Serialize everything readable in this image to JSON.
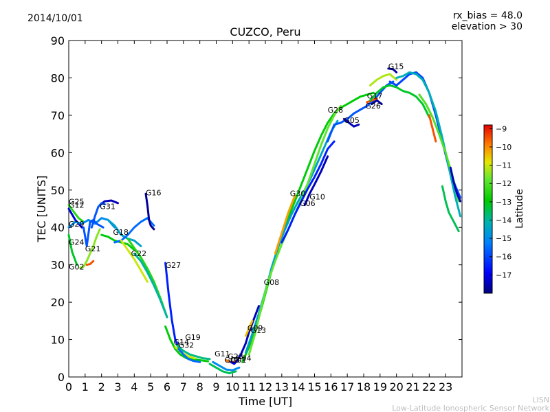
{
  "header": {
    "date": "2014/10/01",
    "rx_bias": "rx_bias = 48.0",
    "elevation": "elevation > 30"
  },
  "watermark": {
    "line1": "LISN",
    "line2": "Low-Latitude Ionospheric Sensor Network"
  },
  "chart_data": {
    "type": "scatter",
    "title": "CUZCO, Peru",
    "xlabel": "Time [UT]",
    "ylabel": "TEC [UNITS]",
    "xlim": [
      0,
      24
    ],
    "ylim": [
      0,
      90
    ],
    "xticks": [
      "0",
      "1",
      "2",
      "3",
      "4",
      "5",
      "6",
      "7",
      "8",
      "9",
      "10",
      "11",
      "12",
      "13",
      "14",
      "15",
      "16",
      "17",
      "18",
      "19",
      "20",
      "21",
      "22",
      "23"
    ],
    "yticks": [
      "0",
      "10",
      "20",
      "30",
      "40",
      "50",
      "60",
      "70",
      "80",
      "90"
    ],
    "colorbar": {
      "label": "Latitude",
      "range": [
        -18,
        -8.8
      ],
      "ticks": [
        "-9",
        "-10",
        "-11",
        "-12",
        "-13",
        "-14",
        "-15",
        "-16",
        "-17"
      ]
    },
    "satellite_labels": [
      {
        "name": "G25",
        "x": 0.0,
        "y": 46.2
      },
      {
        "name": "G12",
        "x": 0.0,
        "y": 45.3
      },
      {
        "name": "G29",
        "x": 0.0,
        "y": 40.2
      },
      {
        "name": "G24",
        "x": 0.0,
        "y": 35.4
      },
      {
        "name": "G21",
        "x": 1.0,
        "y": 33.6
      },
      {
        "name": "G02",
        "x": 0.0,
        "y": 28.7
      },
      {
        "name": "G31",
        "x": 1.9,
        "y": 44.9
      },
      {
        "name": "G18",
        "x": 2.7,
        "y": 38.0
      },
      {
        "name": "G22",
        "x": 3.8,
        "y": 32.3
      },
      {
        "name": "G16",
        "x": 4.7,
        "y": 48.6
      },
      {
        "name": "G27",
        "x": 5.9,
        "y": 29.2
      },
      {
        "name": "G14",
        "x": 6.4,
        "y": 8.6
      },
      {
        "name": "G32",
        "x": 6.7,
        "y": 7.8
      },
      {
        "name": "G19",
        "x": 7.1,
        "y": 9.9
      },
      {
        "name": "G11",
        "x": 8.9,
        "y": 5.5
      },
      {
        "name": "G23",
        "x": 9.7,
        "y": 4.8
      },
      {
        "name": "G03",
        "x": 9.5,
        "y": 3.9
      },
      {
        "name": "G01",
        "x": 9.9,
        "y": 3.9
      },
      {
        "name": "G04",
        "x": 10.2,
        "y": 4.3
      },
      {
        "name": "G09",
        "x": 10.9,
        "y": 12.4
      },
      {
        "name": "G13",
        "x": 11.1,
        "y": 11.8
      },
      {
        "name": "G08",
        "x": 11.9,
        "y": 24.6
      },
      {
        "name": "G30",
        "x": 13.5,
        "y": 48.4
      },
      {
        "name": "G06",
        "x": 14.1,
        "y": 45.7
      },
      {
        "name": "G10",
        "x": 14.7,
        "y": 47.5
      },
      {
        "name": "G28",
        "x": 15.8,
        "y": 70.7
      },
      {
        "name": "G05",
        "x": 16.8,
        "y": 68.0
      },
      {
        "name": "G17",
        "x": 18.2,
        "y": 74.5
      },
      {
        "name": "G26",
        "x": 18.1,
        "y": 71.8
      },
      {
        "name": "G15",
        "x": 19.5,
        "y": 82.4
      }
    ],
    "series": [
      {
        "name": "G25",
        "lat": -12.5,
        "x": [
          0.0,
          0.3,
          0.6,
          0.9
        ],
        "y": [
          46.0,
          44.2,
          42.5,
          41.5
        ]
      },
      {
        "name": "G12",
        "lat": -17.2,
        "x": [
          0.0,
          0.4,
          0.8
        ],
        "y": [
          45.0,
          42.0,
          40.0
        ]
      },
      {
        "name": "G29",
        "lat": -15.0,
        "x": [
          0.0,
          0.4,
          0.8,
          1.2,
          1.6,
          2.0,
          2.4,
          2.8
        ],
        "y": [
          40.0,
          41.5,
          41.0,
          42.0,
          41.0,
          42.5,
          42.0,
          40.0
        ]
      },
      {
        "name": "G24",
        "lat": -13.2,
        "x": [
          0.0,
          0.2,
          0.5
        ],
        "y": [
          38.0,
          33.5,
          30.0
        ]
      },
      {
        "name": "G02",
        "lat": -11.5,
        "x": [
          0.7,
          0.9,
          1.1,
          1.3,
          1.5,
          1.7,
          1.9
        ],
        "y": [
          29.2,
          29.5,
          31.0,
          33.0,
          35.0,
          37.5,
          39.5
        ]
      },
      {
        "name": "G02b",
        "lat": -9.5,
        "x": [
          1.1,
          1.3,
          1.5
        ],
        "y": [
          30.0,
          30.2,
          31.0
        ]
      },
      {
        "name": "G21",
        "lat": -15.8,
        "x": [
          0.9,
          1.1,
          1.3,
          1.5,
          1.7,
          1.9,
          2.1
        ],
        "y": [
          40.0,
          35.0,
          41.5,
          42.0,
          41.0,
          40.5,
          40.0
        ]
      },
      {
        "name": "G31",
        "lat": -17.5,
        "x": [
          1.9,
          2.2,
          2.6,
          3.0
        ],
        "y": [
          46.0,
          47.0,
          47.2,
          46.5
        ]
      },
      {
        "name": "G31b",
        "lat": -15.8,
        "x": [
          1.4,
          1.6,
          1.8,
          2.0,
          2.2
        ],
        "y": [
          40.0,
          43.0,
          45.5,
          46.5,
          46.2
        ]
      },
      {
        "name": "G18",
        "lat": -13.0,
        "x": [
          2.0,
          2.4,
          2.8,
          3.2,
          3.6,
          4.0
        ],
        "y": [
          38.0,
          37.5,
          36.5,
          36.0,
          35.5,
          34.0
        ]
      },
      {
        "name": "G18b",
        "lat": -14.5,
        "x": [
          2.4,
          2.8,
          3.2,
          3.6,
          4.0,
          4.4
        ],
        "y": [
          42.0,
          40.5,
          38.0,
          37.0,
          36.5,
          35.0
        ]
      },
      {
        "name": "G18c",
        "lat": -15.5,
        "x": [
          2.8,
          3.2,
          3.6,
          4.0,
          4.4,
          4.8,
          5.2
        ],
        "y": [
          36.0,
          36.5,
          38.0,
          40.0,
          41.5,
          42.5,
          40.5
        ]
      },
      {
        "name": "G22",
        "lat": -11.0,
        "x": [
          3.2,
          3.6,
          4.0,
          4.4,
          4.8
        ],
        "y": [
          36.5,
          34.0,
          31.5,
          28.5,
          25.5
        ]
      },
      {
        "name": "G22b",
        "lat": -12.5,
        "x": [
          3.6,
          4.0,
          4.4,
          4.8,
          5.2,
          5.6,
          6.0
        ],
        "y": [
          37.0,
          34.5,
          32.0,
          29.0,
          25.5,
          21.0,
          16.0
        ]
      },
      {
        "name": "G22c",
        "lat": -14.0,
        "x": [
          4.0,
          4.4,
          4.8,
          5.2,
          5.6,
          6.0
        ],
        "y": [
          33.0,
          31.0,
          28.0,
          24.5,
          20.5,
          16.0
        ]
      },
      {
        "name": "G16",
        "lat": -17.8,
        "x": [
          4.7,
          4.8,
          4.9,
          5.0,
          5.2
        ],
        "y": [
          49.0,
          46.0,
          42.0,
          40.5,
          39.5
        ]
      },
      {
        "name": "G27",
        "lat": -16.5,
        "x": [
          5.9,
          6.1,
          6.3,
          6.5,
          6.8,
          7.2,
          7.6,
          8.0
        ],
        "y": [
          30.5,
          22.0,
          15.0,
          10.0,
          7.0,
          5.5,
          4.5,
          4.0
        ]
      },
      {
        "name": "G27b",
        "lat": -13.0,
        "x": [
          5.9,
          6.2,
          6.5,
          6.8,
          7.2,
          7.6,
          8.0,
          8.5
        ],
        "y": [
          13.5,
          10.0,
          7.5,
          6.0,
          5.0,
          4.8,
          4.5,
          4.2
        ]
      },
      {
        "name": "G19",
        "lat": -13.8,
        "x": [
          6.6,
          7.0,
          7.4,
          7.8,
          8.2,
          8.6
        ],
        "y": [
          8.5,
          7.0,
          6.0,
          5.5,
          5.0,
          4.8
        ]
      },
      {
        "name": "G14",
        "lat": -11.0,
        "x": [
          6.5,
          6.9,
          7.3,
          7.7
        ],
        "y": [
          8.0,
          6.5,
          5.5,
          5.0
        ]
      },
      {
        "name": "G32",
        "lat": -15.5,
        "x": [
          6.7,
          7.0,
          7.3,
          7.6,
          8.0
        ],
        "y": [
          7.5,
          6.0,
          4.8,
          4.3,
          4.0
        ]
      },
      {
        "name": "G11",
        "lat": -13.5,
        "x": [
          8.6,
          9.0,
          9.4,
          9.8,
          10.2
        ],
        "y": [
          3.5,
          2.5,
          1.5,
          1.0,
          1.5
        ]
      },
      {
        "name": "G11b",
        "lat": -15.0,
        "x": [
          8.8,
          9.2,
          9.6,
          10.0,
          10.4
        ],
        "y": [
          4.0,
          3.0,
          2.0,
          1.8,
          2.5
        ]
      },
      {
        "name": "G23",
        "lat": -9.8,
        "x": [
          9.6,
          9.8,
          10.0,
          10.2
        ],
        "y": [
          4.5,
          4.0,
          3.8,
          4.2
        ]
      },
      {
        "name": "G01",
        "lat": -17.0,
        "x": [
          9.9,
          10.1,
          10.3,
          10.5
        ],
        "y": [
          4.0,
          3.5,
          4.5,
          6.0
        ]
      },
      {
        "name": "G09",
        "lat": -17.5,
        "x": [
          10.5,
          10.8,
          11.0,
          11.3,
          11.6
        ],
        "y": [
          6.0,
          9.0,
          12.0,
          15.5,
          19.0
        ]
      },
      {
        "name": "G13",
        "lat": -10.5,
        "x": [
          10.8,
          11.0,
          11.2
        ],
        "y": [
          11.0,
          13.0,
          15.0
        ]
      },
      {
        "name": "G08",
        "lat": -13.0,
        "x": [
          10.6,
          11.0,
          11.4,
          11.8,
          12.2,
          12.6,
          13.0,
          13.4,
          13.8,
          14.2,
          14.6,
          15.0,
          15.4,
          15.8,
          16.2,
          16.6,
          17.0,
          17.4,
          17.8,
          18.2,
          18.6
        ],
        "y": [
          4.0,
          8.0,
          13.0,
          19.0,
          25.5,
          32.0,
          38.0,
          42.5,
          47.0,
          51.5,
          56.0,
          60.5,
          64.5,
          68.0,
          70.5,
          72.0,
          73.0,
          74.0,
          75.0,
          75.5,
          76.0
        ]
      },
      {
        "name": "G08b",
        "lat": -14.5,
        "x": [
          10.8,
          11.2,
          11.6,
          12.0,
          12.4,
          12.8,
          13.2,
          13.6,
          14.0,
          14.4,
          14.8,
          15.2,
          15.6,
          16.0,
          16.4
        ],
        "y": [
          6.5,
          11.5,
          17.0,
          23.0,
          29.5,
          35.0,
          39.5,
          43.5,
          47.0,
          50.0,
          53.5,
          57.5,
          61.5,
          65.5,
          68.5
        ]
      },
      {
        "name": "G08c",
        "lat": -11.8,
        "x": [
          11.0,
          11.4,
          11.8,
          12.2,
          12.6,
          13.0,
          13.4,
          13.8,
          14.2,
          14.6,
          15.0,
          15.4,
          15.8,
          16.2,
          16.6
        ],
        "y": [
          6.0,
          12.0,
          19.5,
          26.0,
          31.0,
          35.5,
          39.5,
          43.5,
          47.5,
          52.0,
          57.0,
          62.0,
          66.5,
          70.0,
          72.5
        ]
      },
      {
        "name": "G30",
        "lat": -10.2,
        "x": [
          12.6,
          13.0,
          13.4,
          13.8
        ],
        "y": [
          33.0,
          38.5,
          44.0,
          48.5
        ]
      },
      {
        "name": "G06",
        "lat": -16.5,
        "x": [
          13.0,
          13.4,
          13.8,
          14.2,
          14.6,
          15.0,
          15.4,
          15.8,
          16.2
        ],
        "y": [
          36.0,
          39.5,
          43.5,
          47.0,
          50.5,
          53.5,
          57.0,
          61.0,
          63.0
        ]
      },
      {
        "name": "G10",
        "lat": -17.5,
        "x": [
          14.4,
          14.7,
          15.0,
          15.4,
          15.8
        ],
        "y": [
          46.0,
          49.0,
          51.5,
          55.0,
          59.0
        ]
      },
      {
        "name": "G28",
        "lat": -15.8,
        "x": [
          15.8,
          16.2,
          16.6,
          17.0,
          17.4,
          17.8,
          18.2,
          18.6,
          19.0,
          19.4,
          19.8
        ],
        "y": [
          63.0,
          67.5,
          68.0,
          69.0,
          70.5,
          71.5,
          72.5,
          74.0,
          76.0,
          78.0,
          79.0
        ]
      },
      {
        "name": "G05",
        "lat": -17.5,
        "x": [
          16.8,
          17.1,
          17.4,
          17.7
        ],
        "y": [
          69.0,
          68.0,
          67.0,
          67.5
        ]
      },
      {
        "name": "G17",
        "lat": -9.5,
        "x": [
          18.2,
          18.5,
          18.8
        ],
        "y": [
          73.5,
          74.0,
          74.5
        ]
      },
      {
        "name": "G26",
        "lat": -17.8,
        "x": [
          18.5,
          18.8,
          19.1
        ],
        "y": [
          73.0,
          74.0,
          73.0
        ]
      },
      {
        "name": "G15",
        "lat": -17.8,
        "x": [
          19.5,
          19.8,
          20.0
        ],
        "y": [
          82.5,
          82.3,
          81.5
        ]
      },
      {
        "name": "G15b",
        "lat": -11.2,
        "x": [
          18.4,
          18.8,
          19.2,
          19.6,
          20.0
        ],
        "y": [
          78.0,
          79.5,
          80.5,
          81.0,
          79.5
        ]
      },
      {
        "name": "G15c",
        "lat": -13.2,
        "x": [
          18.4,
          18.8,
          19.2,
          19.6,
          20.0,
          20.4,
          20.8,
          21.2,
          21.6,
          22.0
        ],
        "y": [
          74.0,
          76.0,
          77.5,
          78.0,
          77.5,
          76.5,
          76.0,
          75.0,
          73.0,
          69.5
        ]
      },
      {
        "name": "G15d",
        "lat": -16.0,
        "x": [
          19.6,
          20.0,
          20.4,
          20.8,
          21.2,
          21.6,
          22.0,
          22.4,
          22.8,
          23.2,
          23.6,
          23.9
        ],
        "y": [
          79.0,
          78.0,
          79.5,
          81.0,
          81.5,
          80.0,
          76.0,
          70.0,
          63.0,
          56.0,
          51.0,
          48.0
        ]
      },
      {
        "name": "G15e",
        "lat": -14.2,
        "x": [
          20.0,
          20.4,
          20.8,
          21.2,
          21.6,
          22.0,
          22.4,
          22.8,
          23.2,
          23.6,
          23.9
        ],
        "y": [
          80.0,
          80.5,
          81.5,
          81.0,
          79.5,
          76.0,
          71.0,
          64.0,
          56.0,
          48.0,
          43.0
        ]
      },
      {
        "name": "G15f",
        "lat": -12.0,
        "x": [
          21.4,
          21.8,
          22.2,
          22.6,
          23.0,
          23.4,
          23.8
        ],
        "y": [
          75.5,
          73.0,
          69.5,
          65.0,
          60.0,
          54.0,
          47.0
        ]
      },
      {
        "name": "G15g",
        "lat": -9.5,
        "x": [
          22.0,
          22.2,
          22.4
        ],
        "y": [
          70.0,
          66.5,
          63.0
        ]
      },
      {
        "name": "G15h",
        "lat": -17.5,
        "x": [
          23.3,
          23.5,
          23.7,
          23.9
        ],
        "y": [
          56.0,
          52.0,
          49.0,
          47.0
        ]
      },
      {
        "name": "G15i",
        "lat": -13.5,
        "x": [
          22.8,
          23.0,
          23.2,
          23.5,
          23.8
        ],
        "y": [
          51.0,
          47.0,
          44.0,
          41.5,
          39.0
        ]
      }
    ]
  }
}
